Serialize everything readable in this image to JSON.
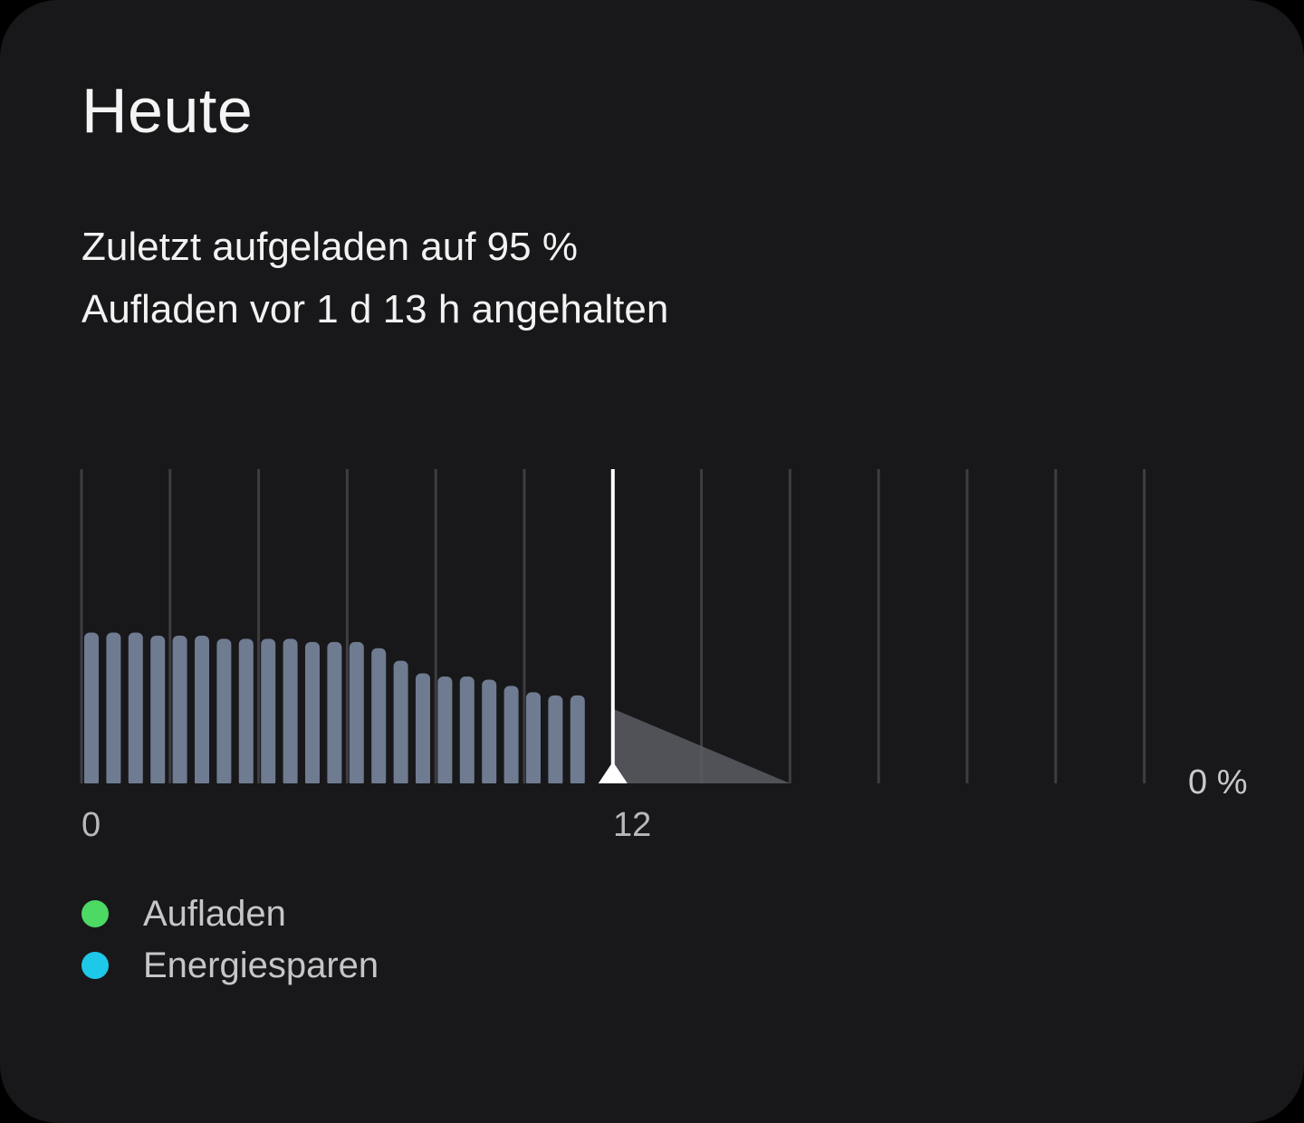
{
  "card": {
    "title": "Heute",
    "status_line_1": "Zuletzt aufgeladen auf 95 %",
    "status_line_2": "Aufladen vor 1 d 13 h angehalten"
  },
  "chart_data": {
    "type": "bar",
    "x_tick_labels": [
      "0",
      "12"
    ],
    "y_axis_label": "0 %",
    "bar_values": [
      48,
      48,
      48,
      47,
      47,
      47,
      46,
      46,
      46,
      46,
      45,
      45,
      45,
      43,
      39,
      35,
      34,
      34,
      33,
      31,
      29,
      28,
      28
    ],
    "ylim": [
      0,
      100
    ],
    "gridlines": 13,
    "current_marker_hour": 12,
    "projection": {
      "start_value": 25,
      "end_hour": 16
    },
    "colors": {
      "bar": "#6f7b90",
      "gridline": "#3d3d42",
      "marker": "#ffffff",
      "projection": "#5a5d64"
    }
  },
  "legend": [
    {
      "label": "Aufladen",
      "color": "#4cd964"
    },
    {
      "label": "Energiesparen",
      "color": "#1ec8e8"
    }
  ]
}
